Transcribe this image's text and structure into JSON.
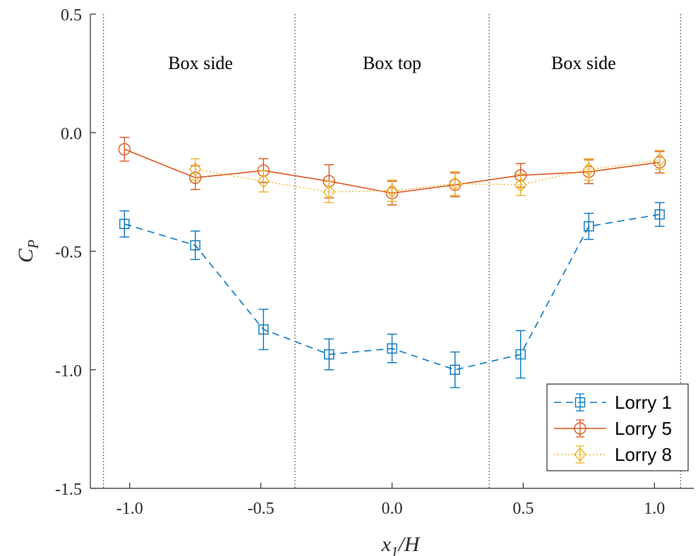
{
  "chart_data": {
    "type": "line",
    "xlabel": {
      "main": "x",
      "sub": "1",
      "tail": "/H"
    },
    "ylabel": {
      "main": "C",
      "sub": "P"
    },
    "xlim": [
      -1.15,
      1.15
    ],
    "ylim": [
      -1.5,
      0.5
    ],
    "xticks": [
      -1.0,
      -0.5,
      0.0,
      0.5,
      1.0
    ],
    "xtick_labels": [
      "-1.0",
      "-0.5",
      "0.0",
      "0.5",
      "1.0"
    ],
    "yticks": [
      0.5,
      0.0,
      -0.5,
      -1.0,
      -1.5
    ],
    "ytick_labels": [
      "0.5",
      "0.0",
      "-0.5",
      "-1.0",
      "-1.5"
    ],
    "grid": false,
    "legend_position": "bottom-right",
    "region_dividers_x": [
      -1.1,
      -0.37,
      0.37,
      1.1
    ],
    "regions": [
      {
        "label": "Box side",
        "x": -0.73
      },
      {
        "label": "Box top",
        "x": 0.0
      },
      {
        "label": "Box side",
        "x": 0.73
      }
    ],
    "series": [
      {
        "name": "Lorry 1",
        "color": "#0072BD",
        "line_style": "dashed",
        "marker": "square",
        "x": [
          -1.02,
          -0.75,
          -0.49,
          -0.24,
          0.0,
          0.24,
          0.49,
          0.75,
          1.02
        ],
        "y": [
          -0.385,
          -0.475,
          -0.83,
          -0.935,
          -0.91,
          -1.0,
          -0.935,
          -0.395,
          -0.345
        ],
        "err": [
          0.055,
          0.06,
          0.085,
          0.065,
          0.06,
          0.075,
          0.1,
          0.055,
          0.05
        ]
      },
      {
        "name": "Lorry 5",
        "color": "#D95319",
        "line_style": "solid",
        "marker": "circle",
        "x": [
          -1.02,
          -0.75,
          -0.49,
          -0.24,
          0.0,
          0.24,
          0.49,
          0.75,
          1.02
        ],
        "y": [
          -0.07,
          -0.19,
          -0.16,
          -0.205,
          -0.255,
          -0.22,
          -0.18,
          -0.165,
          -0.125
        ],
        "err": [
          0.05,
          0.05,
          0.05,
          0.07,
          0.05,
          0.05,
          0.05,
          0.05,
          0.045
        ]
      },
      {
        "name": "Lorry 8",
        "color": "#EDB120",
        "line_style": "dotted",
        "marker": "diamond",
        "x": [
          -0.75,
          -0.49,
          -0.24,
          0.0,
          0.24,
          0.49,
          0.75,
          1.02
        ],
        "y": [
          -0.155,
          -0.205,
          -0.25,
          -0.245,
          -0.215,
          -0.22,
          -0.155,
          -0.115
        ],
        "err": [
          0.045,
          0.045,
          0.045,
          0.045,
          0.05,
          0.045,
          0.045,
          0.04
        ]
      }
    ]
  }
}
